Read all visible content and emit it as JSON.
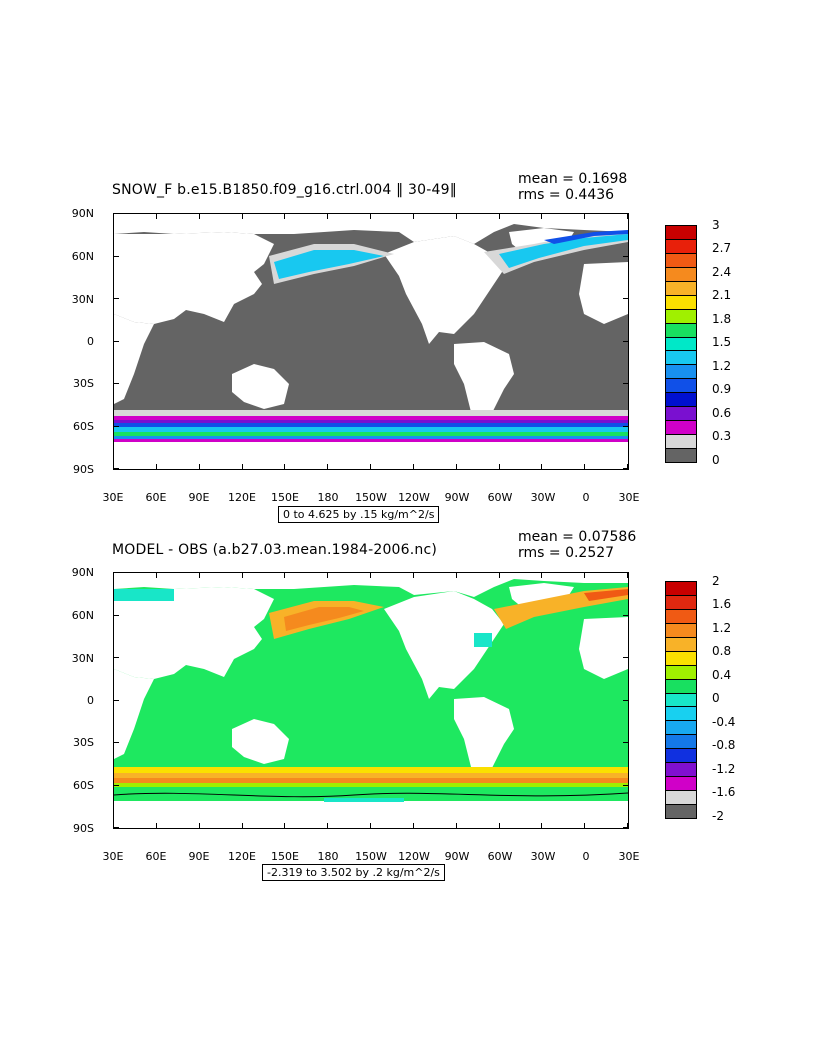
{
  "panels": [
    {
      "id": "top",
      "title": "SNOW_F b.e15.B1850.f09_g16.ctrl.004 ‖ 30-49‖",
      "stat_mean": "mean = 0.1698",
      "stat_rms": "rms = 0.4436",
      "range_text": "0 to 4.625 by .15 kg/m^2/s",
      "lat_labels": [
        "90N",
        "60N",
        "30N",
        "0",
        "30S",
        "60S",
        "90S"
      ],
      "lon_labels": [
        "30E",
        "60E",
        "90E",
        "120E",
        "150E",
        "180",
        "150W",
        "120W",
        "90W",
        "60W",
        "30W",
        "0",
        "30E"
      ],
      "colorbar_labels": [
        "3",
        "2.7",
        "2.4",
        "2.1",
        "1.8",
        "1.5",
        "1.2",
        "0.9",
        "0.6",
        "0.3",
        "0"
      ],
      "colorbar_colors": [
        "#c80000",
        "#e8200a",
        "#f05a14",
        "#f58a1e",
        "#f8b228",
        "#fbe000",
        "#a0f000",
        "#18e060",
        "#00e8c8",
        "#18c8f0",
        "#1890f0",
        "#1050e8",
        "#0010d0",
        "#7a10d0",
        "#d000c8",
        "#d8d8d8",
        "#646464"
      ],
      "ocean_color": "#646464",
      "land_color": "#ffffff"
    },
    {
      "id": "bottom",
      "title": "MODEL - OBS (a.b27.03.mean.1984-2006.nc)",
      "stat_mean": "mean = 0.07586",
      "stat_rms": "rms = 0.2527",
      "range_text": "-2.319 to 3.502 by .2 kg/m^2/s",
      "lat_labels": [
        "90N",
        "60N",
        "30N",
        "0",
        "30S",
        "60S",
        "90S"
      ],
      "lon_labels": [
        "30E",
        "60E",
        "90E",
        "120E",
        "150E",
        "180",
        "150W",
        "120W",
        "90W",
        "60W",
        "30W",
        "0",
        "30E"
      ],
      "colorbar_labels": [
        "2",
        "1.6",
        "1.2",
        "0.8",
        "0.4",
        "0",
        "-0.4",
        "-0.8",
        "-1.2",
        "-1.6",
        "-2"
      ],
      "colorbar_colors": [
        "#c80000",
        "#e02810",
        "#f05a14",
        "#f58a1e",
        "#f8b228",
        "#fbe000",
        "#a0f000",
        "#18e060",
        "#18e6c8",
        "#18d0f0",
        "#18a8f0",
        "#1478e8",
        "#1030e0",
        "#8010d0",
        "#d000c8",
        "#d8d8d8",
        "#646464"
      ],
      "ocean_color": "#1ee860",
      "land_color": "#ffffff"
    }
  ]
}
